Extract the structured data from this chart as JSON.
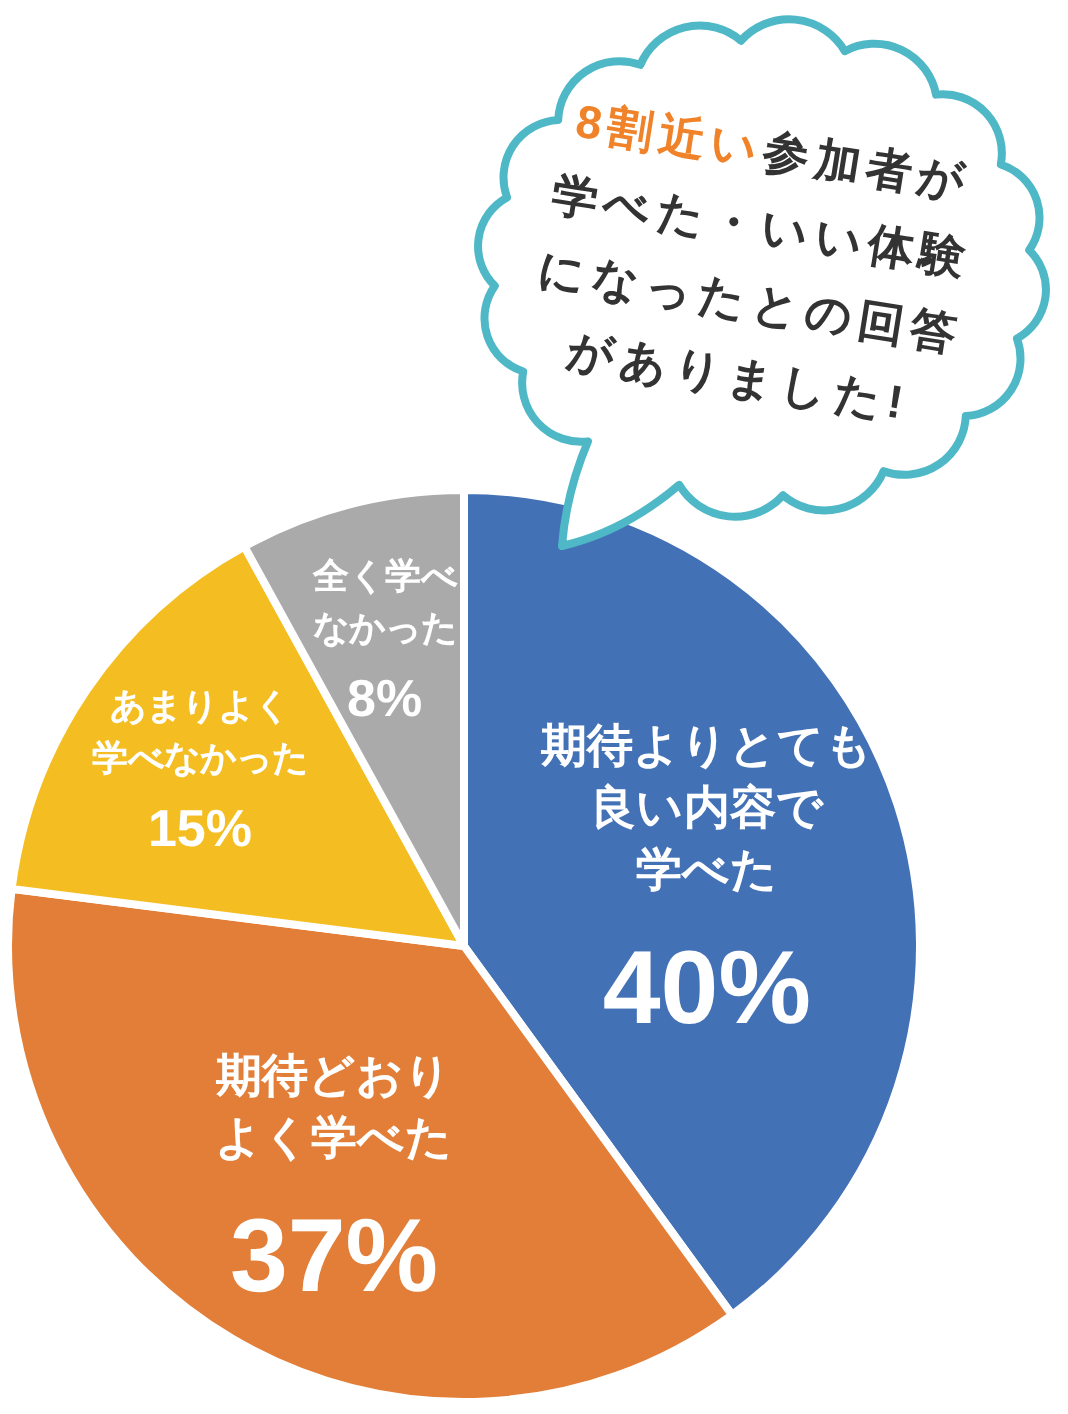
{
  "chart_data": {
    "type": "pie",
    "categories": [
      "期待よりとても良い内容で学べた",
      "期待どおりよく学べた",
      "あまりよく学べなかった",
      "全く学べなかった"
    ],
    "values": [
      40,
      37,
      15,
      8
    ],
    "colors": [
      "#4271b6",
      "#e27e37",
      "#f4be22",
      "#aaaaaa"
    ],
    "value_labels": [
      "40%",
      "37%",
      "15%",
      "8%"
    ],
    "annotations": [
      "8割近い",
      "参加者が学べた・いい体験になったとの回答がありました!"
    ]
  }
}
